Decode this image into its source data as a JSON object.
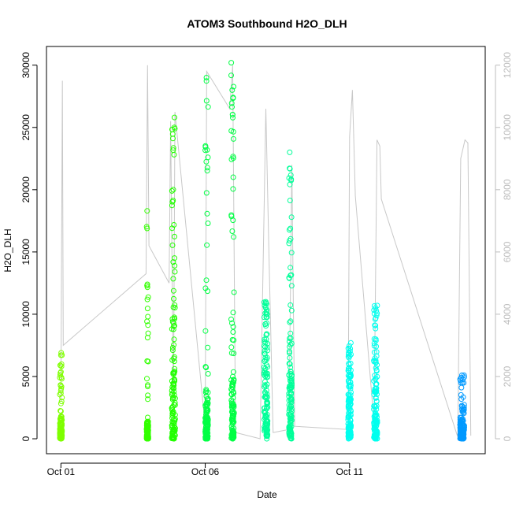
{
  "chart_data": {
    "type": "scatter",
    "title": "ATOM3 Southbound H2O_DLH",
    "xlabel": "Date",
    "ylabel": "H2O_DLH",
    "x_ticks": [
      {
        "label": "Oct 01",
        "day": 1
      },
      {
        "label": "Oct 06",
        "day": 6
      },
      {
        "label": "Oct 11",
        "day": 11
      }
    ],
    "xlim_days": [
      0.5,
      15.7
    ],
    "ylim": [
      -1200,
      31500
    ],
    "y_ticks": [
      0,
      5000,
      10000,
      15000,
      20000,
      25000,
      30000
    ],
    "y2lim": [
      -480,
      12600
    ],
    "y2_ticks": [
      0,
      2000,
      4000,
      6000,
      8000,
      10000,
      12000
    ],
    "grid": false,
    "series": [
      {
        "color": "#7fff00",
        "clusters": [
          {
            "day": 1.0,
            "width": 0.08,
            "bulk_max": 1800,
            "peak": 6900
          }
        ]
      },
      {
        "color": "#33ff00",
        "clusters": [
          {
            "day": 4.0,
            "width": 0.06,
            "bulk_max": 1400,
            "peak": 18300
          }
        ]
      },
      {
        "color": "#22ff00",
        "clusters": [
          {
            "day": 4.9,
            "width": 0.12,
            "bulk_max": 10000,
            "peak": 25800
          }
        ]
      },
      {
        "color": "#00ff44",
        "clusters": [
          {
            "day": 6.05,
            "width": 0.1,
            "bulk_max": 4000,
            "peak": 29000
          },
          {
            "day": 6.95,
            "width": 0.1,
            "bulk_max": 5000,
            "peak": 30200
          }
        ]
      },
      {
        "color": "#00ff99",
        "clusters": [
          {
            "day": 8.1,
            "width": 0.12,
            "bulk_max": 7500,
            "peak": 11000
          },
          {
            "day": 8.95,
            "width": 0.1,
            "bulk_max": 8000,
            "peak": 23000
          }
        ]
      },
      {
        "color": "#00ffee",
        "clusters": [
          {
            "day": 11.0,
            "width": 0.1,
            "bulk_max": 5200,
            "peak": 7700
          },
          {
            "day": 11.9,
            "width": 0.12,
            "bulk_max": 6000,
            "peak": 10700
          }
        ]
      },
      {
        "color": "#0099ff",
        "clusters": [
          {
            "day": 14.9,
            "width": 0.15,
            "bulk_max": 1800,
            "peak": 5100
          }
        ]
      }
    ],
    "secondary_trace": {
      "color": "#c8c8c8",
      "path": [
        [
          1.0,
          1200
        ],
        [
          1.05,
          11500
        ],
        [
          1.08,
          3000
        ],
        [
          3.95,
          5300
        ],
        [
          4.0,
          12000
        ],
        [
          4.05,
          6200
        ],
        [
          4.75,
          5000
        ],
        [
          4.8,
          10200
        ],
        [
          4.9,
          1000
        ],
        [
          4.95,
          10500
        ],
        [
          6.0,
          400
        ],
        [
          6.05,
          11800
        ],
        [
          6.85,
          10600
        ],
        [
          6.95,
          12000
        ],
        [
          7.05,
          200
        ],
        [
          7.9,
          0
        ],
        [
          8.1,
          10600
        ],
        [
          8.2,
          6200
        ],
        [
          8.35,
          200
        ],
        [
          8.9,
          300
        ],
        [
          9.0,
          8800
        ],
        [
          9.1,
          400
        ],
        [
          10.95,
          300
        ],
        [
          11.0,
          9700
        ],
        [
          11.1,
          11200
        ],
        [
          11.2,
          7800
        ],
        [
          11.85,
          500
        ],
        [
          11.95,
          9600
        ],
        [
          12.05,
          9400
        ],
        [
          12.1,
          7700
        ],
        [
          14.75,
          50
        ],
        [
          14.85,
          9000
        ],
        [
          15.0,
          9600
        ],
        [
          15.1,
          9500
        ],
        [
          15.2,
          100
        ]
      ]
    }
  }
}
